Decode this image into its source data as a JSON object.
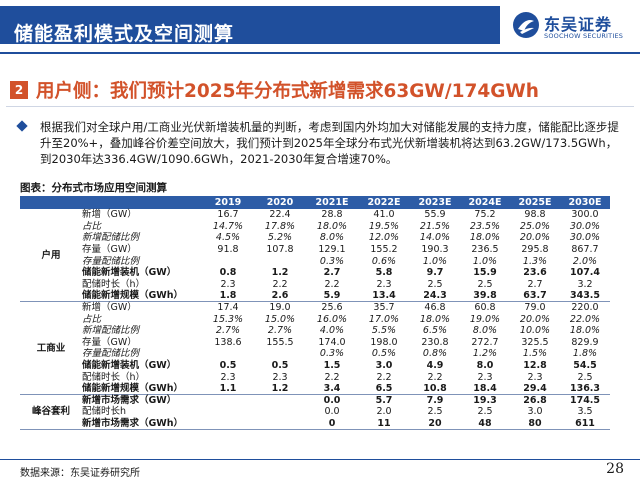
{
  "header": {
    "title": "储能盈利模式及空间测算",
    "logo_cn": "东吴证券",
    "logo_en": "SOOCHOW SECURITIES",
    "brand_color": "#1f4e9c"
  },
  "section": {
    "number": "2",
    "title": "用户侧：我们预计2025年分布式新增需求63GW/174GWh",
    "accent_color": "#d2522a"
  },
  "bullet": {
    "icon": "diamond-bullet-icon",
    "text": "根据我们对全球户用/工商业光伏新增装机量的判断，考虑到国内外均加大对储能发展的支持力度，储能配比逐步提升至20%+，叠加峰谷价差空间放大，我们预计到2025年全球分布式光伏新增装机将达到63.2GW/173.5GWh，到2030年达336.4GW/1090.6GWh，2021-2030年复合增速70%。"
  },
  "table": {
    "caption": "图表：分布式市场应用空间测算",
    "columns": [
      "2019",
      "2020",
      "2021E",
      "2022E",
      "2023E",
      "2024E",
      "2025E",
      "2030E"
    ],
    "groups": [
      {
        "name": "户用",
        "rows": [
          {
            "label": "新增（GW）",
            "style": "normal",
            "values": [
              "16.7",
              "22.4",
              "28.8",
              "41.0",
              "55.9",
              "75.2",
              "98.8",
              "300.0"
            ]
          },
          {
            "label": "占比",
            "style": "italic",
            "values": [
              "14.7%",
              "17.8%",
              "18.0%",
              "19.5%",
              "21.5%",
              "23.5%",
              "25.0%",
              "30.0%"
            ]
          },
          {
            "label": "新增配储比例",
            "style": "italic",
            "values": [
              "4.5%",
              "5.2%",
              "8.0%",
              "12.0%",
              "14.0%",
              "18.0%",
              "20.0%",
              "30.0%"
            ]
          },
          {
            "label": "存量（GW）",
            "style": "normal",
            "values": [
              "91.8",
              "107.8",
              "129.1",
              "155.2",
              "190.3",
              "236.5",
              "295.8",
              "867.7"
            ]
          },
          {
            "label": "存量配储比例",
            "style": "italic",
            "values": [
              "",
              "",
              "0.3%",
              "0.6%",
              "1.0%",
              "1.0%",
              "1.3%",
              "2.0%"
            ]
          },
          {
            "label": "储能新增装机（GW）",
            "style": "bold",
            "values": [
              "0.8",
              "1.2",
              "2.7",
              "5.8",
              "9.7",
              "15.9",
              "23.6",
              "107.4"
            ]
          },
          {
            "label": "配储时长（h）",
            "style": "normal",
            "values": [
              "2.3",
              "2.2",
              "2.2",
              "2.3",
              "2.5",
              "2.5",
              "2.7",
              "3.2"
            ]
          },
          {
            "label": "储能新增规模（GWh）",
            "style": "bold",
            "values": [
              "1.8",
              "2.6",
              "5.9",
              "13.4",
              "24.3",
              "39.8",
              "63.7",
              "343.5"
            ]
          }
        ]
      },
      {
        "name": "工商业",
        "rows": [
          {
            "label": "新增（GW）",
            "style": "normal",
            "values": [
              "17.4",
              "19.0",
              "25.6",
              "35.7",
              "46.8",
              "60.8",
              "79.0",
              "220.0"
            ]
          },
          {
            "label": "占比",
            "style": "italic",
            "values": [
              "15.3%",
              "15.0%",
              "16.0%",
              "17.0%",
              "18.0%",
              "19.0%",
              "20.0%",
              "22.0%"
            ]
          },
          {
            "label": "新增配储比例",
            "style": "italic",
            "values": [
              "2.7%",
              "2.7%",
              "4.0%",
              "5.5%",
              "6.5%",
              "8.0%",
              "10.0%",
              "18.0%"
            ]
          },
          {
            "label": "存量（GW）",
            "style": "normal",
            "values": [
              "138.6",
              "155.5",
              "174.0",
              "198.0",
              "230.8",
              "272.7",
              "325.5",
              "829.9"
            ]
          },
          {
            "label": "存量配储比例",
            "style": "italic",
            "values": [
              "",
              "",
              "0.3%",
              "0.5%",
              "0.8%",
              "1.2%",
              "1.5%",
              "1.8%"
            ]
          },
          {
            "label": "储能新增装机（GW）",
            "style": "bold",
            "values": [
              "0.5",
              "0.5",
              "1.5",
              "3.0",
              "4.9",
              "8.0",
              "12.8",
              "54.5"
            ]
          },
          {
            "label": "配储时长（h）",
            "style": "normal",
            "values": [
              "2.3",
              "2.3",
              "2.2",
              "2.2",
              "2.2",
              "2.3",
              "2.3",
              "2.5"
            ]
          },
          {
            "label": "储能新增规模（GWh）",
            "style": "bold",
            "values": [
              "1.1",
              "1.2",
              "3.4",
              "6.5",
              "10.8",
              "18.4",
              "29.4",
              "136.3"
            ]
          }
        ]
      },
      {
        "name": "峰谷套利",
        "rows": [
          {
            "label": "新增市场需求（GW）",
            "style": "bold",
            "values": [
              "",
              "",
              "0.0",
              "5.7",
              "7.9",
              "19.3",
              "26.8",
              "174.5"
            ]
          },
          {
            "label": "配储时长h",
            "style": "normal",
            "values": [
              "",
              "",
              "0.0",
              "2.0",
              "2.5",
              "2.5",
              "3.0",
              "3.5"
            ]
          },
          {
            "label": "新增市场需求（GWh）",
            "style": "bold",
            "values": [
              "",
              "",
              "0",
              "11",
              "20",
              "48",
              "80",
              "611"
            ]
          }
        ]
      }
    ]
  },
  "footer": {
    "source": "数据来源：东吴证券研究所",
    "page": "28"
  }
}
